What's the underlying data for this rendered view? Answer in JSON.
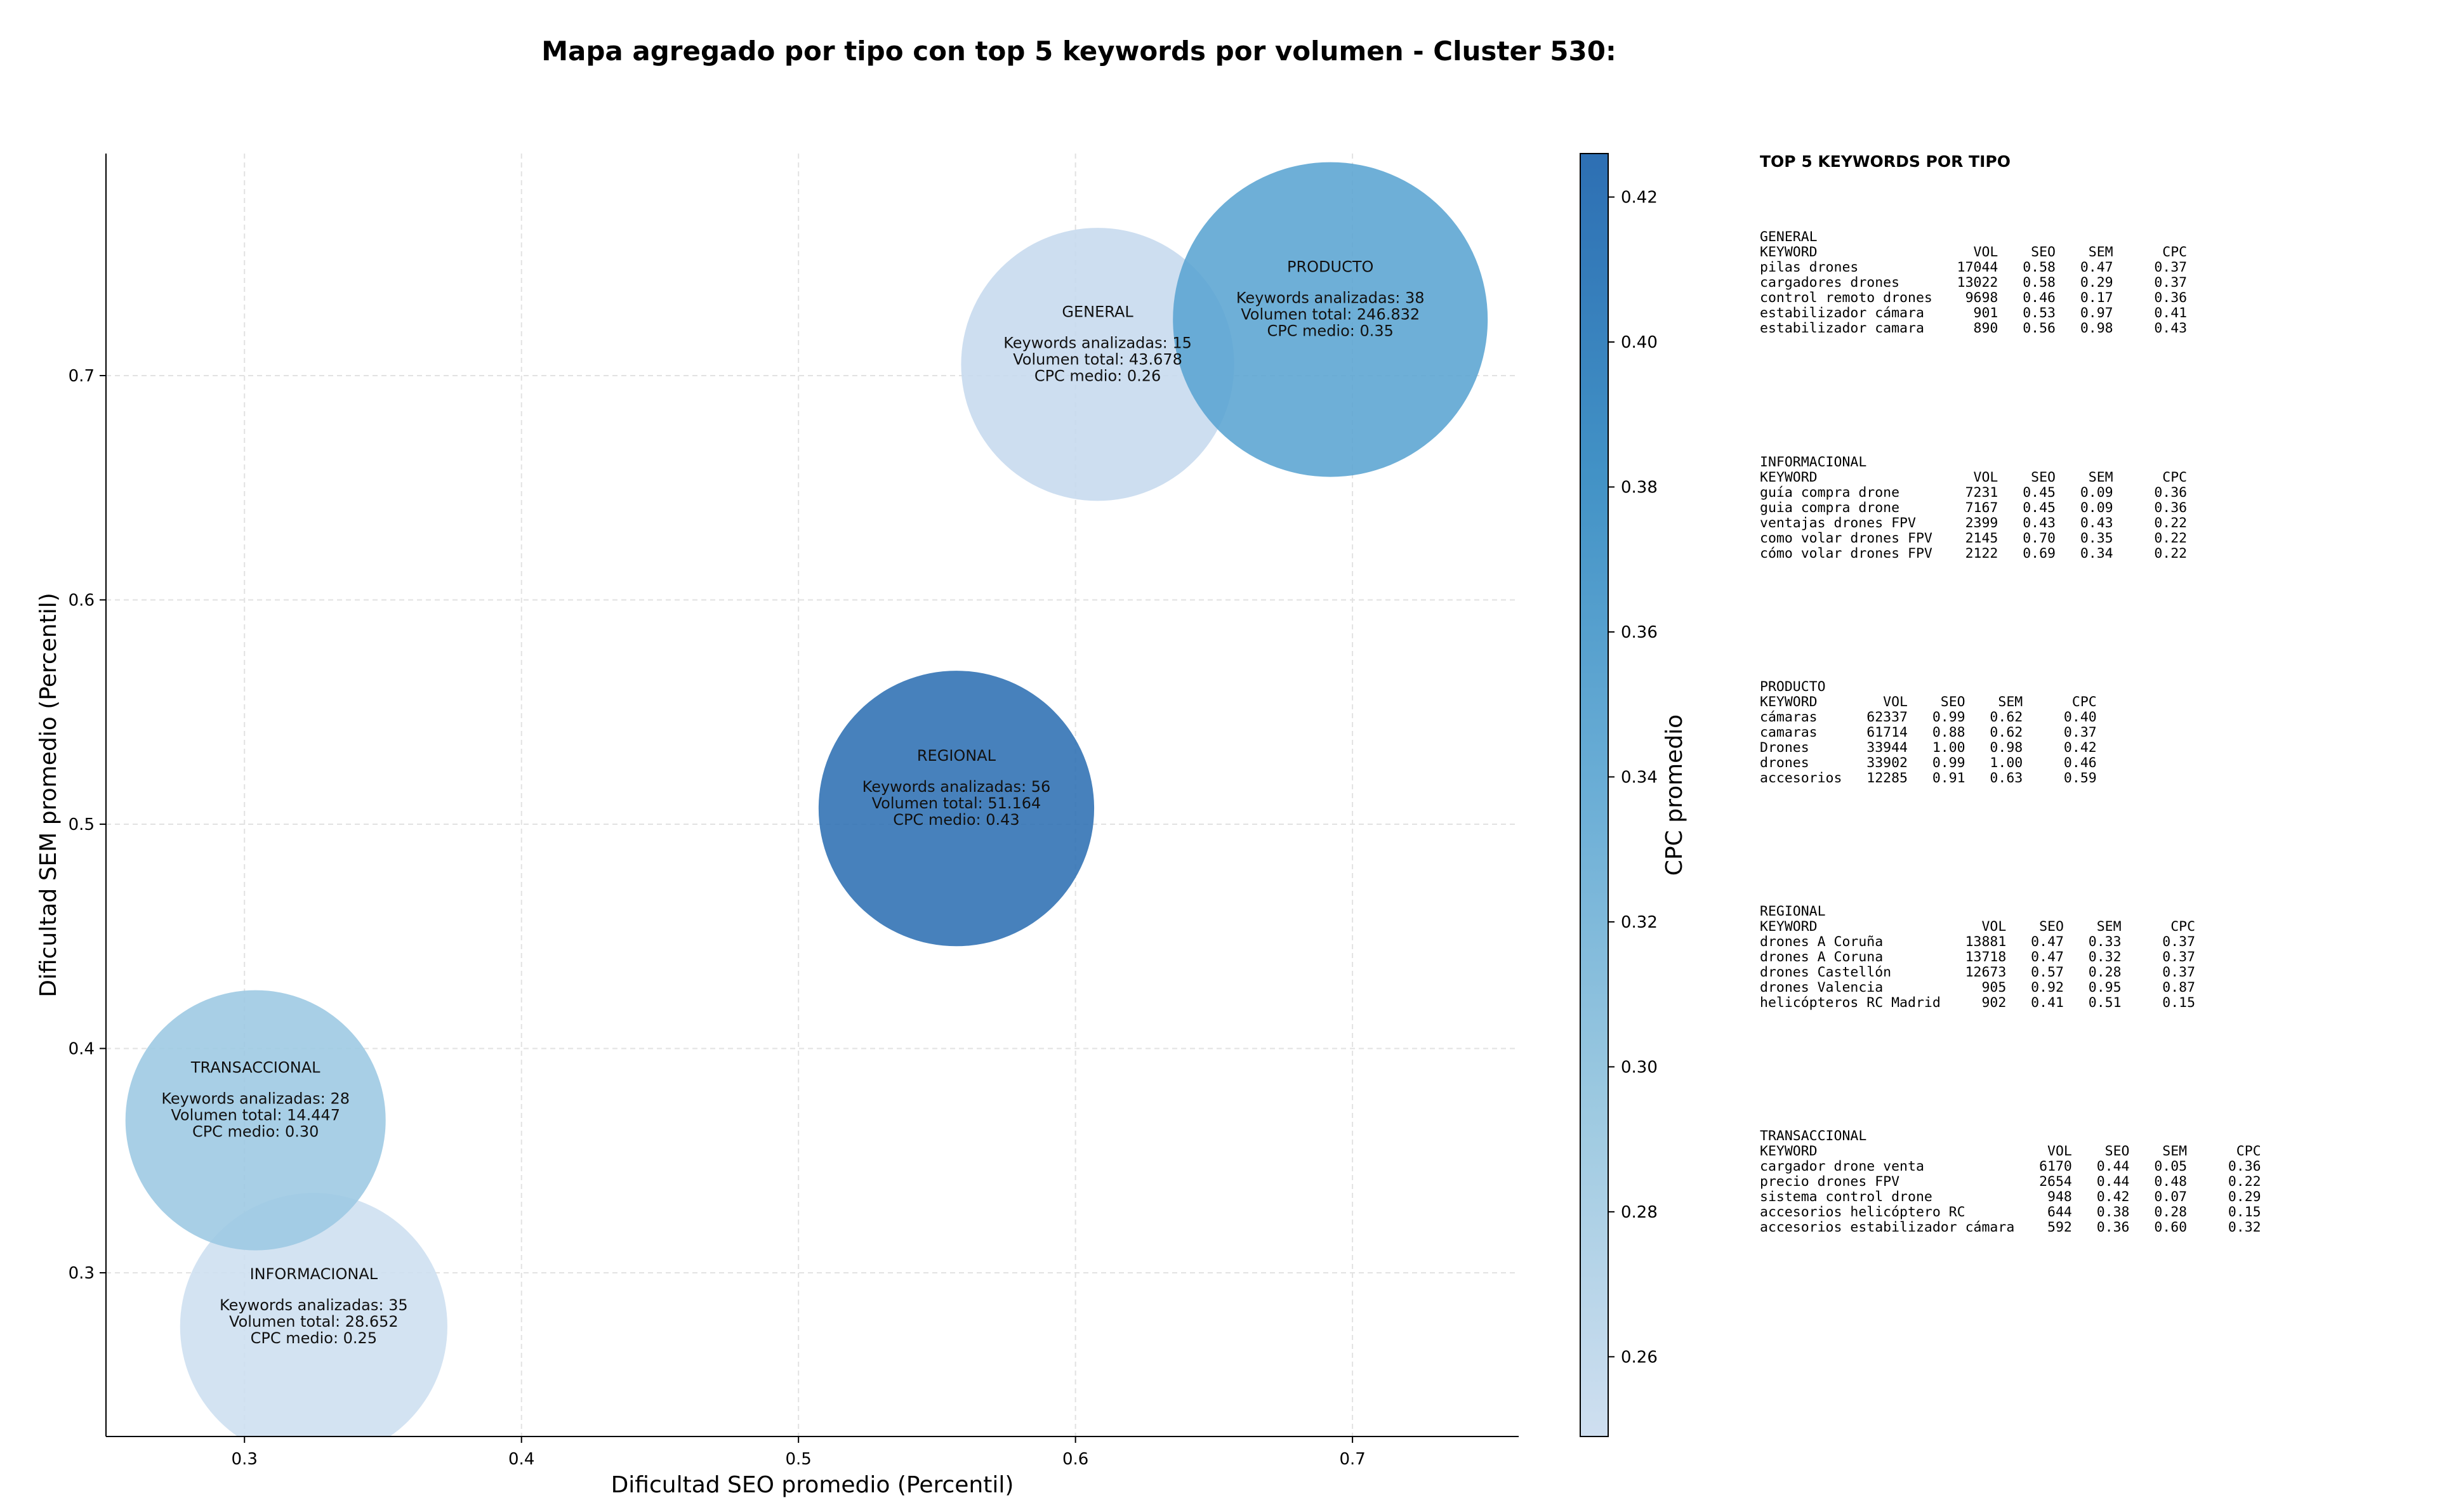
{
  "chart_data": {
    "type": "scatter",
    "title": "Mapa agregado por tipo con top 5 keywords por volumen - Cluster 530:",
    "xlabel": "Dificultad SEO promedio (Percentil)",
    "ylabel": "Dificultad SEM promedio (Percentil)",
    "xlim": [
      0.25,
      0.76
    ],
    "ylim": [
      0.227,
      0.799
    ],
    "xticks": [
      "0.3",
      "0.4",
      "0.5",
      "0.6",
      "0.7"
    ],
    "yticks": [
      "0.3",
      "0.4",
      "0.5",
      "0.6",
      "0.7"
    ],
    "grid": true,
    "colorbar": {
      "label": "CPC promedio",
      "range": [
        0.249,
        0.426
      ],
      "ticks": [
        "0.26",
        "0.28",
        "0.30",
        "0.32",
        "0.34",
        "0.36",
        "0.38",
        "0.40",
        "0.42"
      ],
      "colors": [
        "#cfdff0",
        "#9ecae1",
        "#6baed6",
        "#4292c6",
        "#2d6fb3"
      ]
    },
    "points": [
      {
        "name": "GENERAL",
        "x": 0.608,
        "y": 0.705,
        "keywords_label": "Keywords analizadas: 15",
        "volume_label": "Volumen total: 43.678",
        "cpc_label": "CPC medio: 0.26",
        "cpc": 0.26,
        "volume": 43678,
        "color": "#c6daee"
      },
      {
        "name": "PRODUCTO",
        "x": 0.692,
        "y": 0.725,
        "keywords_label": "Keywords analizadas: 38",
        "volume_label": "Volumen total: 246.832",
        "cpc_label": "CPC medio: 0.35",
        "cpc": 0.35,
        "volume": 246832,
        "color": "#5aa4d2"
      },
      {
        "name": "REGIONAL",
        "x": 0.557,
        "y": 0.507,
        "keywords_label": "Keywords analizadas: 56",
        "volume_label": "Volumen total: 51.164",
        "cpc_label": "CPC medio: 0.43",
        "cpc": 0.43,
        "volume": 51164,
        "color": "#2d6fb3"
      },
      {
        "name": "INFORMACIONAL",
        "x": 0.325,
        "y": 0.276,
        "keywords_label": "Keywords analizadas: 35",
        "volume_label": "Volumen total: 28.652",
        "cpc_label": "CPC medio: 0.25",
        "cpc": 0.25,
        "volume": 28652,
        "color": "#cddff0"
      },
      {
        "name": "TRANSACCIONAL",
        "x": 0.304,
        "y": 0.368,
        "keywords_label": "Keywords analizadas: 28",
        "volume_label": "Volumen total: 14.447",
        "cpc_label": "CPC medio: 0.30",
        "cpc": 0.3,
        "volume": 14447,
        "color": "#9cc8e2"
      }
    ]
  },
  "top_keywords": {
    "heading": "TOP 5 KEYWORDS POR TIPO",
    "blocks": [
      "GENERAL\nKEYWORD                   VOL    SEO    SEM      CPC\npilas drones            17044   0.58   0.47     0.37\ncargadores drones       13022   0.58   0.29     0.37\ncontrol remoto drones    9698   0.46   0.17     0.36\nestabilizador cámara      901   0.53   0.97     0.41\nestabilizador camara      890   0.56   0.98     0.43",
      "INFORMACIONAL\nKEYWORD                   VOL    SEO    SEM      CPC\nguía compra drone        7231   0.45   0.09     0.36\nguia compra drone        7167   0.45   0.09     0.36\nventajas drones FPV      2399   0.43   0.43     0.22\ncomo volar drones FPV    2145   0.70   0.35     0.22\ncómo volar drones FPV    2122   0.69   0.34     0.22",
      "PRODUCTO\nKEYWORD        VOL    SEO    SEM      CPC\ncámaras      62337   0.99   0.62     0.40\ncamaras      61714   0.88   0.62     0.37\nDrones       33944   1.00   0.98     0.42\ndrones       33902   0.99   1.00     0.46\naccesorios   12285   0.91   0.63     0.59",
      "REGIONAL\nKEYWORD                    VOL    SEO    SEM      CPC\ndrones A Coruña          13881   0.47   0.33     0.37\ndrones A Coruna          13718   0.47   0.32     0.37\ndrones Castellón         12673   0.57   0.28     0.37\ndrones Valencia            905   0.92   0.95     0.87\nhelicópteros RC Madrid     902   0.41   0.51     0.15",
      "TRANSACCIONAL\nKEYWORD                            VOL    SEO    SEM      CPC\ncargador drone venta              6170   0.44   0.05     0.36\nprecio drones FPV                 2654   0.44   0.48     0.22\nsistema control drone              948   0.42   0.07     0.29\naccesorios helicóptero RC          644   0.38   0.28     0.15\naccesorios estabilizador cámara    592   0.36   0.60     0.32"
    ]
  }
}
